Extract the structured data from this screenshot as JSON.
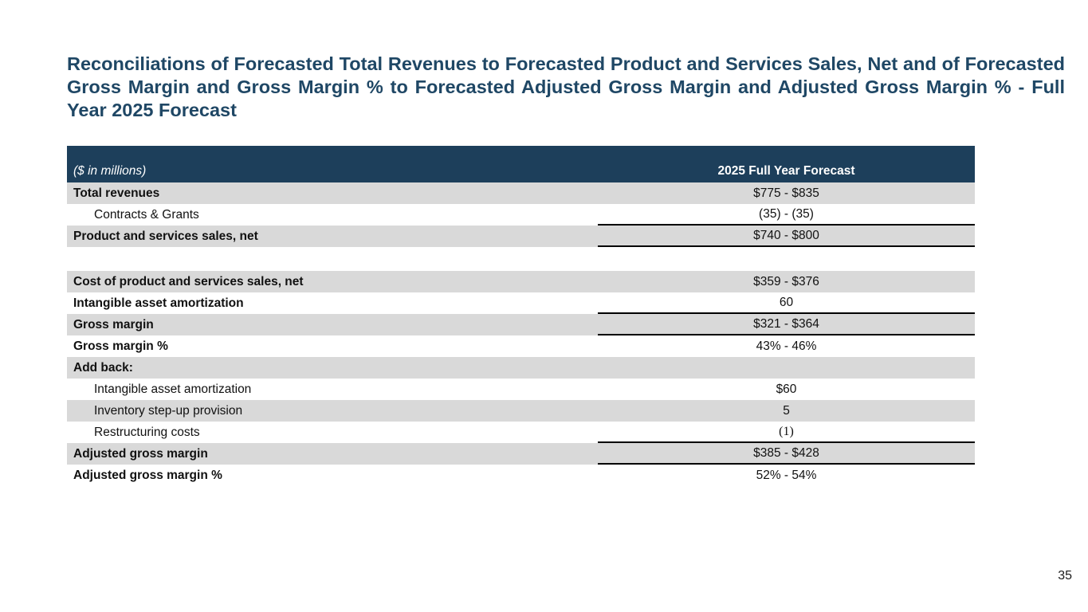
{
  "slide": {
    "title": "Reconciliations of Forecasted Total Revenues to Forecasted Product and Services Sales, Net and of Forecasted Gross Margin and Gross Margin % to Forecasted Adjusted Gross Margin and Adjusted Gross Margin % - Full Year 2025 Forecast",
    "page_number": "35"
  },
  "colors": {
    "title_blue": "#1f4765",
    "header_navy": "#1d3f5b",
    "row_gray": "#d9d9d9",
    "line_black": "#000000",
    "text_black": "#111111"
  },
  "table": {
    "header": {
      "label": "($ in millions)",
      "value": "2025 Full Year Forecast"
    },
    "rows": [
      {
        "label": "Total revenues",
        "value": "$775 - $835",
        "bold": true,
        "shaded": true,
        "indent": false,
        "line": false,
        "blank": false,
        "serif": false
      },
      {
        "label": "Contracts & Grants",
        "value": "(35) - (35)",
        "bold": false,
        "shaded": false,
        "indent": true,
        "line": true,
        "blank": false,
        "serif": false
      },
      {
        "label": "Product and services sales, net",
        "value": "$740 - $800",
        "bold": true,
        "shaded": true,
        "indent": false,
        "line": true,
        "blank": false,
        "serif": false
      },
      {
        "label": "",
        "value": "",
        "bold": false,
        "shaded": false,
        "indent": false,
        "line": false,
        "blank": true,
        "serif": false
      },
      {
        "label": "Cost of product and services sales, net",
        "value": "$359 - $376",
        "bold": true,
        "shaded": true,
        "indent": false,
        "line": false,
        "blank": false,
        "serif": false
      },
      {
        "label": "Intangible asset amortization",
        "value": "60",
        "bold": true,
        "shaded": false,
        "indent": false,
        "line": true,
        "blank": false,
        "serif": false
      },
      {
        "label": "Gross margin",
        "value": "$321 - $364",
        "bold": true,
        "shaded": true,
        "indent": false,
        "line": true,
        "blank": false,
        "serif": false
      },
      {
        "label": "Gross margin %",
        "value": "43% - 46%",
        "bold": true,
        "shaded": false,
        "indent": false,
        "line": false,
        "blank": false,
        "serif": false
      },
      {
        "label": "Add back:",
        "value": "",
        "bold": true,
        "shaded": true,
        "indent": false,
        "line": false,
        "blank": false,
        "serif": false
      },
      {
        "label": "Intangible asset amortization",
        "value": "$60",
        "bold": false,
        "shaded": false,
        "indent": true,
        "line": false,
        "blank": false,
        "serif": false
      },
      {
        "label": "Inventory step-up provision",
        "value": "5",
        "bold": false,
        "shaded": true,
        "indent": true,
        "line": false,
        "blank": false,
        "serif": false
      },
      {
        "label": "Restructuring costs",
        "value": "(1)",
        "bold": false,
        "shaded": false,
        "indent": true,
        "line": true,
        "blank": false,
        "serif": true
      },
      {
        "label": "Adjusted gross margin",
        "value": "$385 - $428",
        "bold": true,
        "shaded": true,
        "indent": false,
        "line": true,
        "blank": false,
        "serif": false
      },
      {
        "label": "Adjusted gross margin %",
        "value": "52% - 54%",
        "bold": true,
        "shaded": false,
        "indent": false,
        "line": false,
        "blank": false,
        "serif": false
      }
    ]
  }
}
